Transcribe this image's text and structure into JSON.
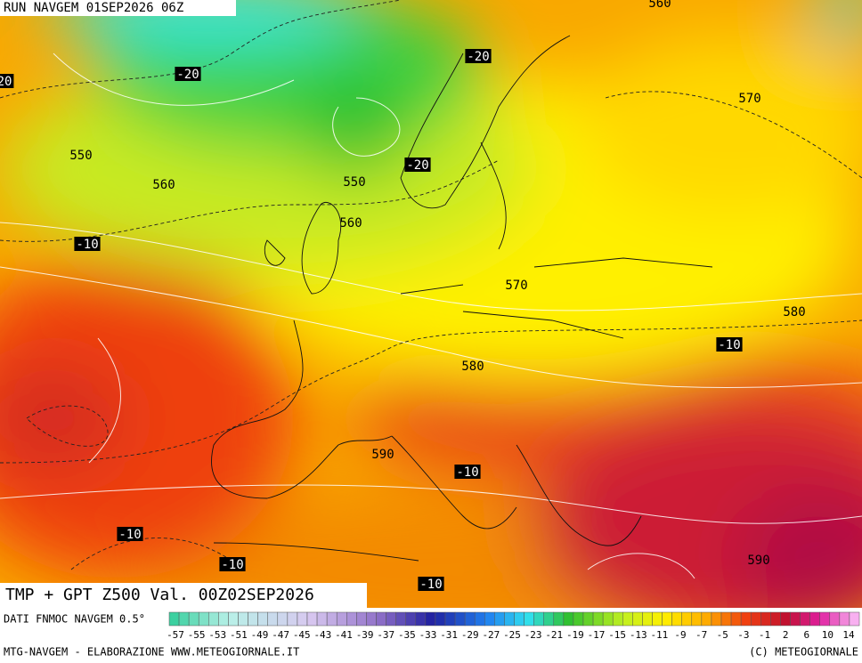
{
  "header": {
    "run": "RUN NAVGEM 01SEP2026 06Z"
  },
  "map": {
    "contour_labels": [
      "560",
      "570",
      "-20",
      "20",
      "-20",
      "550",
      "560",
      "-20",
      "550",
      "560",
      "-10",
      "570",
      "580",
      "-10",
      "580",
      "590",
      "-10",
      "-10",
      "-10",
      "590",
      "-10"
    ]
  },
  "caption": "TMP + GPT Z500 Val. 00Z02SEP2026",
  "legend": {
    "source": "DATI FNMOC NAVGEM 0.5°",
    "labels": [
      "-57",
      "-55",
      "-53",
      "-51",
      "-49",
      "-47",
      "-45",
      "-43",
      "-41",
      "-39",
      "-37",
      "-35",
      "-33",
      "-31",
      "-29",
      "-27",
      "-25",
      "-23",
      "-21",
      "-19",
      "-17",
      "-15",
      "-13",
      "-11",
      "-9",
      "-7",
      "-5",
      "-3",
      "-1",
      "2",
      "6",
      "10",
      "14"
    ]
  },
  "footer": {
    "left": "MTG-NAVGEM - ELABORAZIONE WWW.METEOGIORNALE.IT",
    "right": "(C) METEOGIORNALE"
  }
}
